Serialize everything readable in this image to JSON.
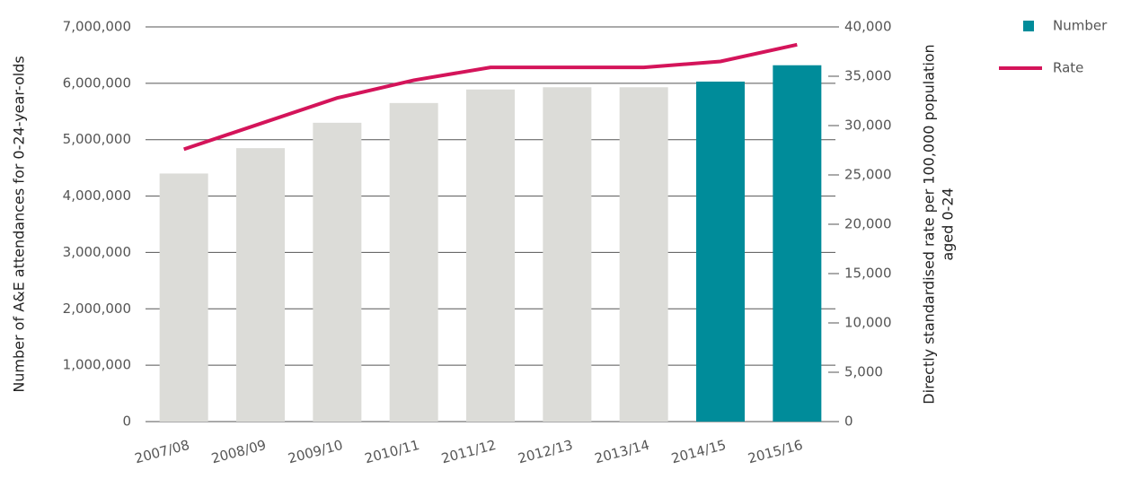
{
  "chart_data": {
    "type": "bar-line",
    "categories": [
      "2007/08",
      "2008/09",
      "2009/10",
      "2010/11",
      "2011/12",
      "2012/13",
      "2013/14",
      "2014/15",
      "2015/16"
    ],
    "series": [
      {
        "name": "Number",
        "type": "bar",
        "color": "#008c9a",
        "colors": [
          "#dcdcd8",
          "#dcdcd8",
          "#dcdcd8",
          "#dcdcd8",
          "#dcdcd8",
          "#dcdcd8",
          "#dcdcd8",
          "#008c9a",
          "#008c9a"
        ],
        "values": [
          4400000,
          4850000,
          5300000,
          5650000,
          5890000,
          5930000,
          5930000,
          6030000,
          6320000
        ]
      },
      {
        "name": "Rate",
        "type": "line",
        "axis": "y2",
        "color": "#d4145a",
        "values": [
          27600,
          30200,
          32800,
          34600,
          35900,
          35900,
          35900,
          36500,
          38200
        ]
      }
    ],
    "ylabel": "Number of A&E attendances for 0-24-year-olds",
    "y2label": [
      "Directly standardised rate per 100,000 population",
      "aged 0-24"
    ],
    "ylim": [
      0,
      7000000
    ],
    "yticks": [
      0,
      {
        "value": 1000000,
        "label": "1,000,000"
      },
      {
        "value": 2000000,
        "label": "2,000,000"
      },
      {
        "value": 3000000,
        "label": "3,000,000"
      },
      {
        "value": 4000000,
        "label": "4,000,000"
      },
      {
        "value": 5000000,
        "label": "5,000,000"
      },
      {
        "value": 6000000,
        "label": "6,000,000"
      },
      {
        "value": 7000000,
        "label": "7,000,000"
      }
    ],
    "y2lim": [
      0,
      40000
    ],
    "y2ticks": [
      0,
      {
        "value": 5000,
        "label": "5,000"
      },
      {
        "value": 10000,
        "label": "10,000"
      },
      {
        "value": 15000,
        "label": "15,000"
      },
      {
        "value": 20000,
        "label": "20,000"
      },
      {
        "value": 25000,
        "label": "25,000"
      },
      {
        "value": 30000,
        "label": "30,000"
      },
      {
        "value": 35000,
        "label": "35,000"
      },
      {
        "value": 40000,
        "label": "40,000"
      }
    ],
    "grid": true,
    "legend": "top-right"
  }
}
